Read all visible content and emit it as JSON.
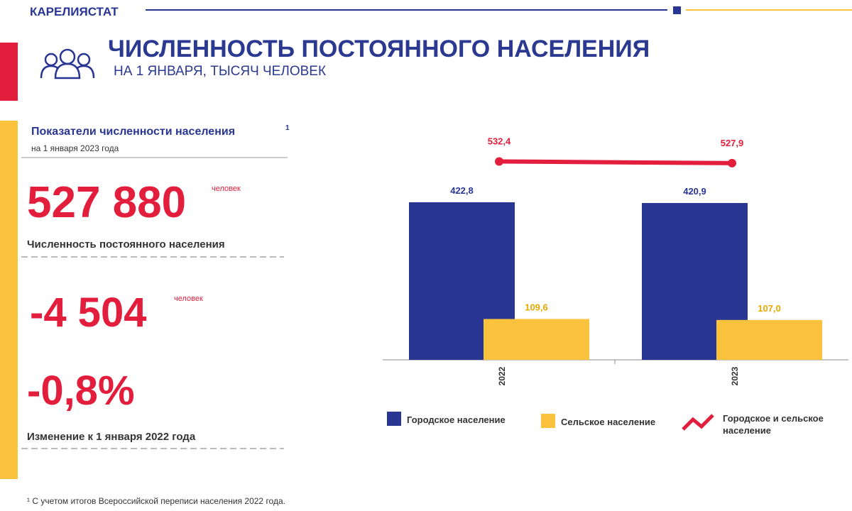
{
  "header": {
    "org": "КАРЕЛИЯСТАТ",
    "title": "ЧИСЛЕННОСТЬ ПОСТОЯННОГО НАСЕЛЕНИЯ",
    "subtitle": "НА 1 ЯНВАРЯ, ТЫСЯЧ ЧЕЛОВЕК"
  },
  "panel": {
    "title": "Показатели численности населения",
    "note_mark": "1",
    "date": "на 1 января 2023 года",
    "stats": [
      {
        "value": "527 880",
        "unit": "человек",
        "label": "Численность постоянного населения"
      },
      {
        "value": "-4 504",
        "unit": "человек"
      },
      {
        "value": "-0,8%",
        "label": "Изменение к 1 января 2022 года"
      }
    ]
  },
  "footnote": "¹ С учетом итогов Всероссийской переписи населения 2022 года.",
  "chart_data": {
    "type": "bar",
    "categories": [
      "2022",
      "2023"
    ],
    "series": [
      {
        "name": "Городское население",
        "color": "#283593",
        "values": [
          422.8,
          420.9
        ],
        "value_labels": [
          "422,8",
          "420,9"
        ]
      },
      {
        "name": "Сельское население",
        "color": "#fbc33d",
        "values": [
          109.6,
          107.0
        ],
        "value_labels": [
          "109,6",
          "107,0"
        ]
      },
      {
        "name": "Городское и сельское население",
        "color": "#e31e3c",
        "type": "line",
        "values": [
          532.4,
          527.9
        ],
        "value_labels": [
          "532,4",
          "527,9"
        ]
      }
    ]
  }
}
